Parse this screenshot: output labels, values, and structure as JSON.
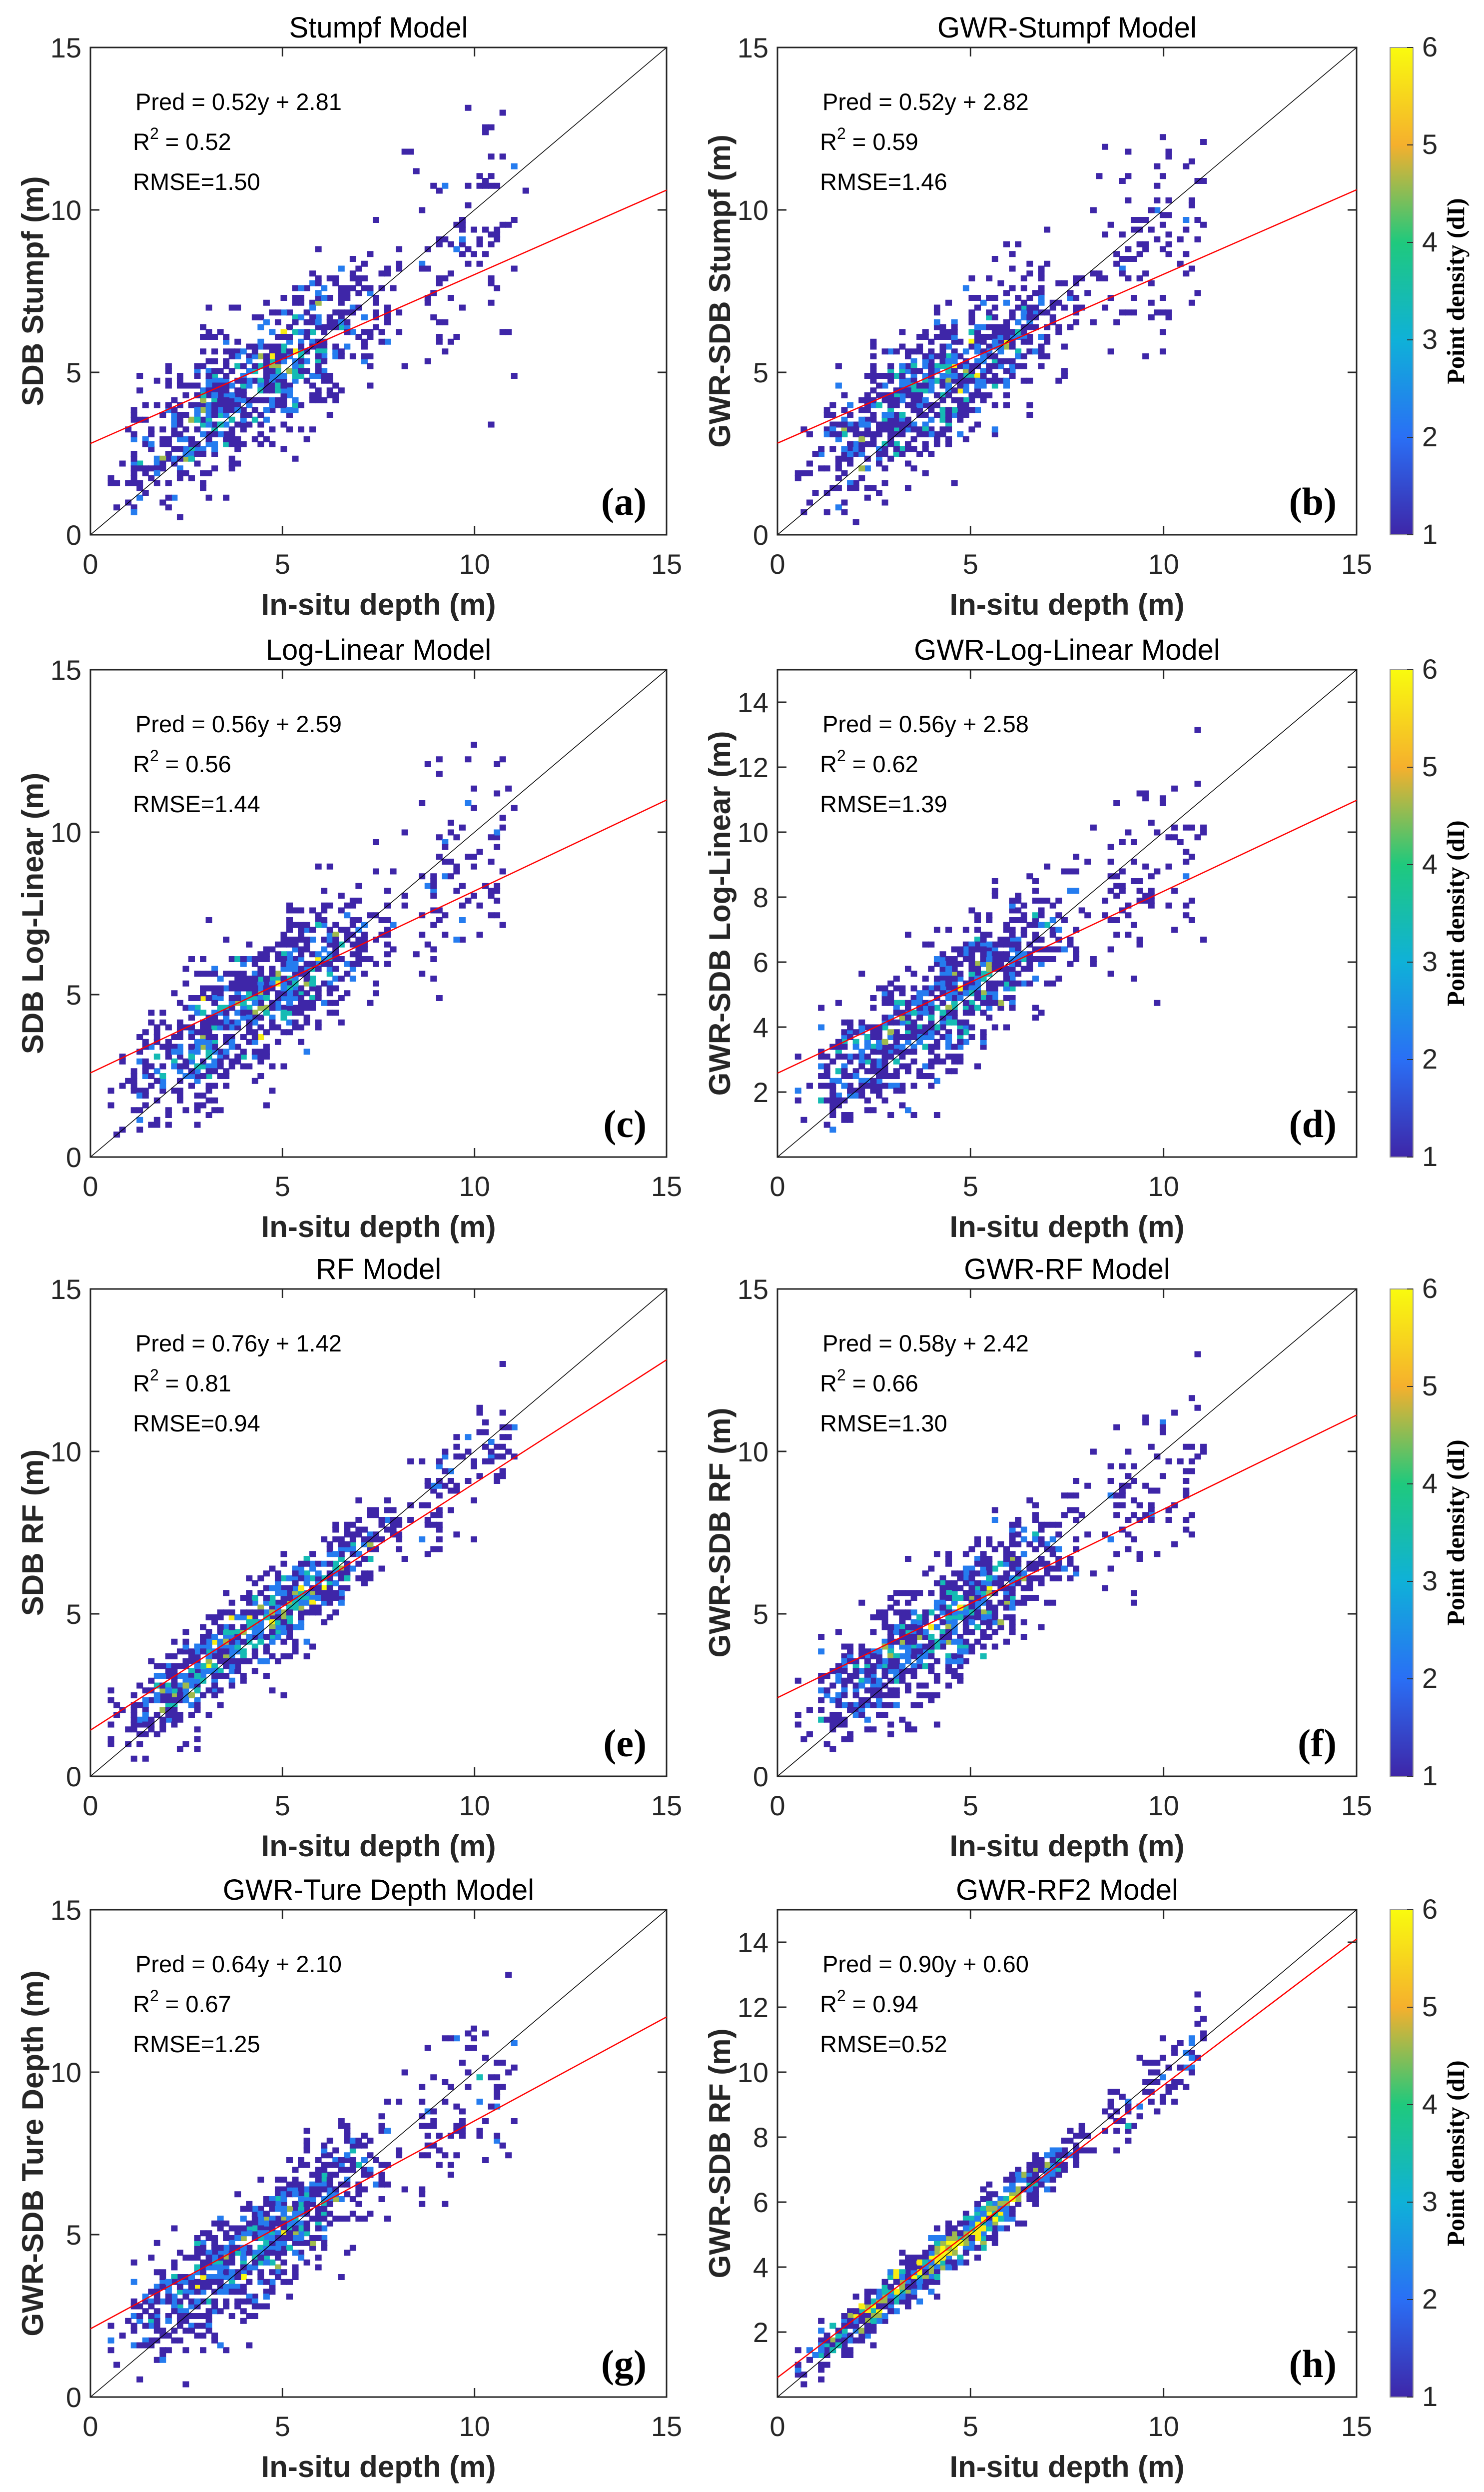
{
  "chart_data": {
    "type": "heatmap",
    "description_kind": "density scatter grid of 8 panels",
    "colorbar": {
      "label": "Point density (dI)",
      "range": [
        1,
        6
      ],
      "ticks": [
        "1",
        "2",
        "3",
        "4",
        "5",
        "6"
      ],
      "colors": [
        "#3e26a8",
        "#2a6ff5",
        "#0fb1d8",
        "#1fc97d",
        "#f5b02d",
        "#f9fb0e"
      ]
    },
    "panels": [
      {
        "id": "a",
        "title": "Stumpf Model",
        "xlabel": "In-situ depth (m)",
        "ylabel": "SDB Stumpf (m)",
        "xlim": [
          0,
          15
        ],
        "ylim": [
          0,
          15
        ],
        "xticks": [
          "0",
          "5",
          "10",
          "15"
        ],
        "yticks": [
          "0",
          "5",
          "10",
          "15"
        ],
        "slope": 0.52,
        "intercept": 2.81,
        "r2": 0.52,
        "rmse": 1.5,
        "eq": "Pred = 0.52y + 2.81",
        "r2_text": " = 0.52",
        "rmse_text": "RMSE=1.50",
        "label": "(a)"
      },
      {
        "id": "b",
        "title": "GWR-Stumpf Model",
        "xlabel": "In-situ depth (m)",
        "ylabel": "GWR-SDB Stumpf (m)",
        "xlim": [
          0,
          15
        ],
        "ylim": [
          0,
          15
        ],
        "xticks": [
          "0",
          "5",
          "10",
          "15"
        ],
        "yticks": [
          "0",
          "5",
          "10",
          "15"
        ],
        "slope": 0.52,
        "intercept": 2.82,
        "r2": 0.59,
        "rmse": 1.46,
        "eq": "Pred = 0.52y + 2.82",
        "r2_text": " = 0.59",
        "rmse_text": "RMSE=1.46",
        "label": "(b)"
      },
      {
        "id": "c",
        "title": "Log-Linear Model",
        "xlabel": "In-situ depth (m)",
        "ylabel": "SDB Log-Linear (m)",
        "xlim": [
          0,
          15
        ],
        "ylim": [
          0,
          15
        ],
        "xticks": [
          "0",
          "5",
          "10",
          "15"
        ],
        "yticks": [
          "0",
          "5",
          "10",
          "15"
        ],
        "slope": 0.56,
        "intercept": 2.59,
        "r2": 0.56,
        "rmse": 1.44,
        "eq": "Pred = 0.56y + 2.59",
        "r2_text": " = 0.56",
        "rmse_text": "RMSE=1.44",
        "label": "(c)"
      },
      {
        "id": "d",
        "title": "GWR-Log-Linear Model",
        "xlabel": "In-situ depth (m)",
        "ylabel": "GWR-SDB Log-Linear (m)",
        "xlim": [
          0,
          15
        ],
        "ylim": [
          0,
          15
        ],
        "xticks": [
          "0",
          "5",
          "10"
        ],
        "yticks": [
          "2",
          "4",
          "6",
          "8",
          "10",
          "12",
          "14"
        ],
        "slope": 0.56,
        "intercept": 2.58,
        "r2": 0.62,
        "rmse": 1.39,
        "eq": "Pred = 0.56y + 2.58",
        "r2_text": " = 0.62",
        "rmse_text": "RMSE=1.39",
        "label": "(d)"
      },
      {
        "id": "e",
        "title": "RF Model",
        "xlabel": "In-situ depth (m)",
        "ylabel": "SDB RF (m)",
        "xlim": [
          0,
          15
        ],
        "ylim": [
          0,
          15
        ],
        "xticks": [
          "0",
          "5",
          "10",
          "15"
        ],
        "yticks": [
          "0",
          "5",
          "10",
          "15"
        ],
        "slope": 0.76,
        "intercept": 1.42,
        "r2": 0.81,
        "rmse": 0.94,
        "eq": "Pred = 0.76y + 1.42",
        "r2_text": " = 0.81",
        "rmse_text": "RMSE=0.94",
        "label": "(e)"
      },
      {
        "id": "f",
        "title": "GWR-RF Model",
        "xlabel": "In-situ depth (m)",
        "ylabel": "GWR-SDB RF (m)",
        "xlim": [
          0,
          15
        ],
        "ylim": [
          0,
          15
        ],
        "xticks": [
          "0",
          "5",
          "10",
          "15"
        ],
        "yticks": [
          "0",
          "5",
          "10",
          "15"
        ],
        "slope": 0.58,
        "intercept": 2.42,
        "r2": 0.66,
        "rmse": 1.3,
        "eq": "Pred = 0.58y + 2.42",
        "r2_text": " = 0.66",
        "rmse_text": "RMSE=1.30",
        "label": "(f)"
      },
      {
        "id": "g",
        "title": "GWR-Ture Depth Model",
        "xlabel": "In-situ depth (m)",
        "ylabel": "GWR-SDB Ture Depth (m)",
        "xlim": [
          0,
          15
        ],
        "ylim": [
          0,
          15
        ],
        "xticks": [
          "0",
          "5",
          "10",
          "15"
        ],
        "yticks": [
          "0",
          "5",
          "10",
          "15"
        ],
        "slope": 0.64,
        "intercept": 2.1,
        "r2": 0.67,
        "rmse": 1.25,
        "eq": "Pred = 0.64y + 2.10",
        "r2_text": " = 0.67",
        "rmse_text": "RMSE=1.25",
        "label": "(g)"
      },
      {
        "id": "h",
        "title": "GWR-RF2 Model",
        "xlabel": "In-situ depth (m)",
        "ylabel": "GWR-SDB RF (m)",
        "xlim": [
          0,
          15
        ],
        "ylim": [
          0,
          15
        ],
        "xticks": [
          "0",
          "5",
          "10",
          "15"
        ],
        "yticks": [
          "2",
          "4",
          "6",
          "8",
          "10",
          "12",
          "14"
        ],
        "slope": 0.9,
        "intercept": 0.6,
        "r2": 0.94,
        "rmse": 0.52,
        "eq": "Pred = 0.90y + 0.60",
        "r2_text": " = 0.94",
        "rmse_text": "RMSE=0.52",
        "label": "(h)"
      }
    ],
    "reference_line": "1:1 (black)",
    "fit_line_color": "#ff0000",
    "r2_symbol": "R",
    "r2_sup": "2"
  }
}
